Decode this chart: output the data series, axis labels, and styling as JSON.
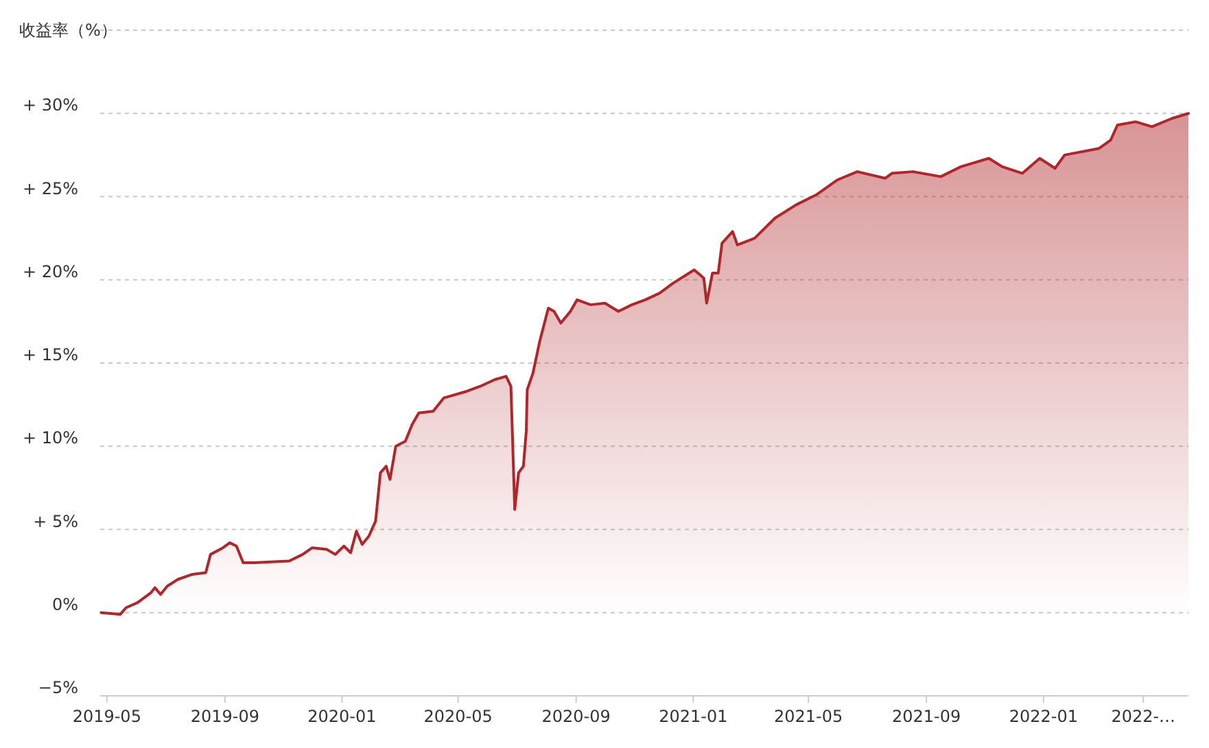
{
  "chart_data": {
    "type": "area",
    "ylabel": "收益率（%）",
    "color": "#b0272b",
    "grid": "y",
    "marker": "none",
    "line_style": "solid",
    "xlim": [
      "2019-04-24",
      "2022-06-01"
    ],
    "xticks": [
      {
        "value": "2019-05-01",
        "label": "2019-05"
      },
      {
        "value": "2019-09-01",
        "label": "2019-09"
      },
      {
        "value": "2020-01-01",
        "label": "2020-01"
      },
      {
        "value": "2020-05-01",
        "label": "2020-05"
      },
      {
        "value": "2020-09-01",
        "label": "2020-09"
      },
      {
        "value": "2021-01-01",
        "label": "2021-01"
      },
      {
        "value": "2021-05-01",
        "label": "2021-05"
      },
      {
        "value": "2021-09-01",
        "label": "2021-09"
      },
      {
        "value": "2022-01-01",
        "label": "2022-01"
      },
      {
        "value": "2022-04-15",
        "label": "2022-…"
      }
    ],
    "ylim": [
      -5,
      35
    ],
    "yticks": [
      {
        "value": -5,
        "label": "−5%"
      },
      {
        "value": 0,
        "label": "0%"
      },
      {
        "value": 5,
        "label": "+ 5%"
      },
      {
        "value": 10,
        "label": "+ 10%"
      },
      {
        "value": 15,
        "label": "+ 15%"
      },
      {
        "value": 20,
        "label": "+ 20%"
      },
      {
        "value": 25,
        "label": "+ 25%"
      },
      {
        "value": 30,
        "label": "+ 30%"
      },
      {
        "value": 35,
        "label": null
      }
    ],
    "x": [
      "2019-04-25",
      "2019-05-15",
      "2019-05-21",
      "2019-06-02",
      "2019-06-16",
      "2019-06-20",
      "2019-06-26",
      "2019-07-03",
      "2019-07-14",
      "2019-07-29",
      "2019-08-12",
      "2019-08-17",
      "2019-08-30",
      "2019-09-06",
      "2019-09-13",
      "2019-09-20",
      "2019-10-01",
      "2019-11-07",
      "2019-11-21",
      "2019-12-01",
      "2019-12-16",
      "2019-12-25",
      "2020-01-03",
      "2020-01-10",
      "2020-01-16",
      "2020-01-22",
      "2020-01-29",
      "2020-02-05",
      "2020-02-10",
      "2020-02-16",
      "2020-02-20",
      "2020-02-26",
      "2020-03-07",
      "2020-03-14",
      "2020-03-21",
      "2020-04-05",
      "2020-04-16",
      "2020-05-10",
      "2020-05-24",
      "2020-06-08",
      "2020-06-20",
      "2020-06-25",
      "2020-06-29",
      "2020-07-03",
      "2020-07-08",
      "2020-07-11",
      "2020-07-12",
      "2020-07-18",
      "2020-07-25",
      "2020-08-03",
      "2020-08-09",
      "2020-08-16",
      "2020-08-26",
      "2020-09-02",
      "2020-09-16",
      "2020-10-01",
      "2020-10-15",
      "2020-10-29",
      "2020-11-12",
      "2020-11-27",
      "2020-12-11",
      "2021-01-02",
      "2021-01-12",
      "2021-01-15",
      "2021-01-21",
      "2021-01-27",
      "2021-01-31",
      "2021-02-11",
      "2021-02-16",
      "2021-03-06",
      "2021-03-27",
      "2021-04-18",
      "2021-05-09",
      "2021-05-31",
      "2021-06-21",
      "2021-07-20",
      "2021-07-27",
      "2021-08-18",
      "2021-09-16",
      "2021-10-07",
      "2021-11-05",
      "2021-11-19",
      "2021-12-10",
      "2021-12-28",
      "2022-01-13",
      "2022-01-23",
      "2022-02-28",
      "2022-03-12",
      "2022-03-19",
      "2022-04-07",
      "2022-04-24",
      "2022-05-15",
      "2022-06-01"
    ],
    "values": [
      0.0,
      -0.1,
      0.3,
      0.6,
      1.2,
      1.5,
      1.1,
      1.6,
      2.0,
      2.3,
      2.4,
      3.5,
      3.9,
      4.2,
      4.0,
      3.0,
      3.0,
      3.1,
      3.5,
      3.9,
      3.8,
      3.5,
      4.0,
      3.6,
      4.9,
      4.1,
      4.6,
      5.5,
      8.4,
      8.8,
      8.0,
      10.0,
      10.3,
      11.3,
      12.0,
      12.1,
      12.9,
      13.3,
      13.6,
      14.0,
      14.2,
      13.6,
      6.2,
      8.4,
      8.8,
      10.9,
      13.4,
      14.4,
      16.3,
      18.3,
      18.1,
      17.4,
      18.1,
      18.8,
      18.5,
      18.6,
      18.1,
      18.5,
      18.8,
      19.2,
      19.8,
      20.6,
      20.1,
      18.6,
      20.4,
      20.4,
      22.2,
      22.9,
      22.1,
      22.5,
      23.7,
      24.5,
      25.1,
      26.0,
      26.5,
      26.1,
      26.4,
      26.5,
      26.2,
      26.8,
      27.3,
      26.8,
      26.4,
      27.3,
      26.7,
      27.5,
      27.9,
      28.4,
      29.3,
      29.5,
      29.2,
      29.7,
      30.0
    ]
  }
}
